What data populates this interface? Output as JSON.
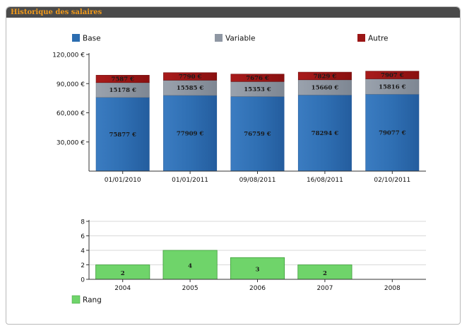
{
  "panel": {
    "title": "Historique des salaires"
  },
  "colors": {
    "base": "#2c6db0",
    "base_dark": "#22579a",
    "variable": "#8f97a3",
    "autre": "#9b1616",
    "rang": "#6fd46a",
    "rang_border": "#3e9c3a",
    "grid": "#d9d9d9",
    "axis": "#333333"
  },
  "chart_data": [
    {
      "type": "bar",
      "stacked": true,
      "title": "",
      "categories": [
        "01/01/2010",
        "01/01/2011",
        "09/08/2011",
        "16/08/2011",
        "02/10/2011"
      ],
      "series": [
        {
          "name": "Base",
          "values": [
            75877,
            77909,
            76759,
            78294,
            79077
          ],
          "labels": [
            "75877 €",
            "77909 €",
            "76759 €",
            "78294 €",
            "79077 €"
          ]
        },
        {
          "name": "Variable",
          "values": [
            15178,
            15585,
            15353,
            15660,
            15816
          ],
          "labels": [
            "15178 €",
            "15585 €",
            "15353 €",
            "15660 €",
            "15816 €"
          ]
        },
        {
          "name": "Autre",
          "values": [
            7587,
            7790,
            7676,
            7829,
            7907
          ],
          "labels": [
            "7587 €",
            "7790 €",
            "7676 €",
            "7829 €",
            "7907 €"
          ]
        }
      ],
      "ylim": [
        0,
        120000
      ],
      "yticks": [
        30000,
        60000,
        90000,
        120000
      ],
      "ytick_labels": [
        "30,000 €",
        "60,000 €",
        "90,000 €",
        "120,000 €"
      ],
      "grid": false,
      "legend": "top"
    },
    {
      "type": "bar",
      "title": "",
      "categories": [
        "2004",
        "2005",
        "2006",
        "2007",
        "2008"
      ],
      "series": [
        {
          "name": "Rang",
          "values": [
            2,
            4,
            3,
            2,
            0
          ],
          "labels": [
            "2",
            "4",
            "3",
            "2",
            ""
          ]
        }
      ],
      "ylim": [
        0,
        8
      ],
      "yticks": [
        0,
        2,
        4,
        6,
        8
      ],
      "ytick_labels": [
        "0",
        "2",
        "4",
        "6",
        "8"
      ],
      "grid": true,
      "legend": "bottom-left"
    }
  ]
}
